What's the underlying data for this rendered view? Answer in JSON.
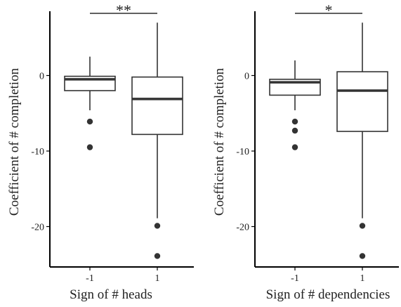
{
  "chart_data": [
    {
      "type": "boxplot",
      "xlabel": "Sign of # heads",
      "ylabel": "Coefficient of # completion",
      "ylim": [
        -25.5,
        9.3
      ],
      "yticks": [
        -20,
        -10,
        0
      ],
      "ytick_labels": [
        "-20",
        "-10",
        "0"
      ],
      "categories": [
        "-1",
        "1"
      ],
      "boxes": [
        {
          "category": "-1",
          "whisker_low": -4.6,
          "q1": -2.0,
          "median": -0.5,
          "q3": -0.1,
          "whisker_high": 2.5,
          "outliers": [
            -6.1,
            -9.5
          ]
        },
        {
          "category": "1",
          "whisker_low": -18.9,
          "q1": -7.8,
          "median": -3.1,
          "q3": -0.2,
          "whisker_high": 7.0,
          "outliers": [
            -19.9,
            -23.9
          ]
        }
      ],
      "significance": {
        "label": "**",
        "between": [
          "-1",
          "1"
        ]
      }
    },
    {
      "type": "boxplot",
      "xlabel": "Sign of # dependencies",
      "ylabel": "Coefficient of # completion",
      "ylim": [
        -25.5,
        9.3
      ],
      "yticks": [
        -20,
        -10,
        0
      ],
      "ytick_labels": [
        "-20",
        "-10",
        "0"
      ],
      "categories": [
        "-1",
        "1"
      ],
      "boxes": [
        {
          "category": "-1",
          "whisker_low": -4.6,
          "q1": -2.6,
          "median": -0.9,
          "q3": -0.5,
          "whisker_high": 2.0,
          "outliers": [
            -6.1,
            -7.3,
            -9.5
          ]
        },
        {
          "category": "1",
          "whisker_low": -18.9,
          "q1": -7.4,
          "median": -2.0,
          "q3": 0.5,
          "whisker_high": 7.0,
          "outliers": [
            -19.9,
            -23.9
          ]
        }
      ],
      "significance": {
        "label": "*",
        "between": [
          "-1",
          "1"
        ]
      }
    }
  ]
}
